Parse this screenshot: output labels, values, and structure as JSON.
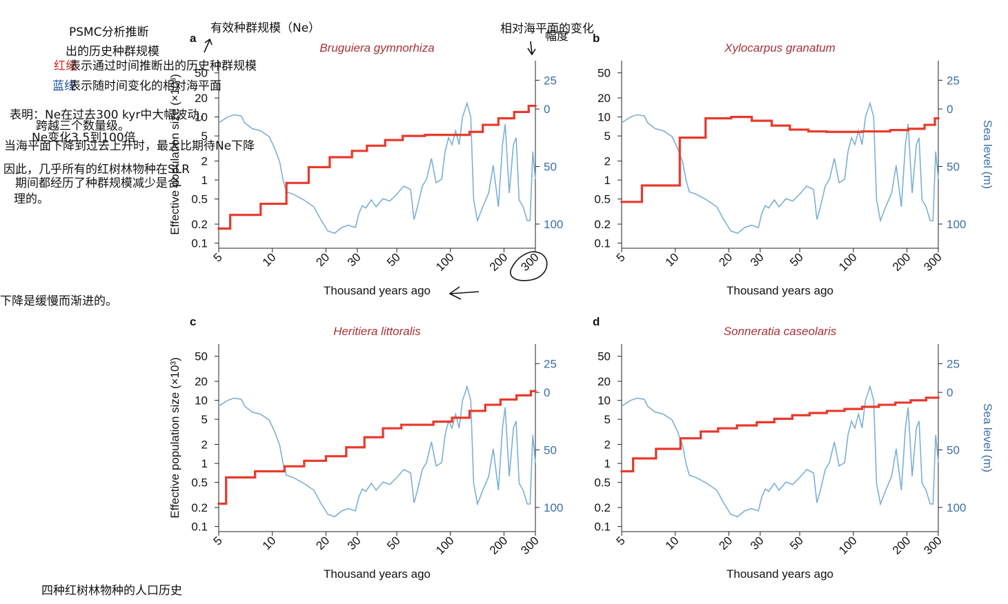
{
  "chart_data": [
    {
      "type": "line",
      "panel": "a",
      "title": "Bruguiera gymnorhiza",
      "xlabel": "Thousand years ago",
      "ylabel": "Effective population size (×10³)",
      "xscale": "log",
      "yscale": "log",
      "xlim": [
        5,
        300
      ],
      "xticks": [
        5,
        10,
        20,
        30,
        50,
        100,
        200,
        300
      ],
      "ylim": [
        0.083,
        78
      ],
      "yticks": [
        0.1,
        0.2,
        0.5,
        1,
        2,
        5,
        10,
        20,
        50
      ],
      "y2lim": [
        -121,
        42
      ],
      "y2ticks": [
        {
          "value": 25,
          "label": "25"
        },
        0,
        {
          "value": -50,
          "label": "50"
        },
        {
          "value": -100,
          "label": "100"
        }
      ],
      "series": [
        {
          "color": "#e8392b",
          "drawstyle": "steps-post",
          "x": [
            5,
            5.8,
            8.6,
            12,
            16,
            21,
            28,
            34,
            43,
            54,
            72,
            128,
            152,
            186,
            228,
            275
          ],
          "values": [
            0.17,
            0.28,
            0.42,
            0.9,
            1.6,
            2.3,
            2.9,
            3.5,
            4.3,
            5,
            5.2,
            5.8,
            7.5,
            9.5,
            12,
            15
          ]
        },
        {
          "color": "#7bafd4",
          "axis": "y2",
          "x": [
            5,
            5.6,
            6.1,
            6.7,
            7,
            7.7,
            8.6,
            9.6,
            10.3,
            11,
            11.5,
            12,
            13.1,
            15,
            17.1,
            18.7,
            20.5,
            22.4,
            24.5,
            26.8,
            29.3,
            30.6,
            32,
            33.5,
            36,
            38.3,
            41.8,
            45.7,
            50,
            54.7,
            59.8,
            62.5,
            65.3,
            69.5,
            73.4,
            78.2,
            83.2,
            89.3,
            93.3,
            97.6,
            102,
            107,
            112,
            117,
            124,
            130,
            135,
            142,
            152,
            164,
            174,
            186,
            196,
            203,
            214,
            226,
            234,
            243,
            256,
            270,
            280,
            290,
            300
          ],
          "values": [
            -12,
            -7,
            -5,
            -6,
            -12,
            -17,
            -19,
            -24,
            -34,
            -46,
            -62,
            -72,
            -74,
            -79,
            -85,
            -96,
            -106,
            -108,
            -103,
            -101,
            -103,
            -91,
            -84,
            -86,
            -79,
            -85,
            -78,
            -80,
            -74,
            -67,
            -70,
            -96,
            -85,
            -67,
            -61,
            -43,
            -64,
            -61,
            -37,
            -25,
            -31,
            -19,
            -31,
            -7,
            5,
            -7,
            -79,
            -97,
            -85,
            -73,
            -49,
            -85,
            -31,
            -13,
            -73,
            -31,
            -25,
            -79,
            -85,
            -97,
            -97,
            -37,
            -61
          ]
        }
      ]
    },
    {
      "type": "line",
      "panel": "b",
      "title": "Xylocarpus granatum",
      "xlabel": "Thousand years ago",
      "y2label": "Sea level (m)",
      "xscale": "log",
      "yscale": "log",
      "xlim": [
        5,
        300
      ],
      "xticks": [
        5,
        10,
        20,
        30,
        50,
        100,
        200,
        300
      ],
      "ylim": [
        0.083,
        78
      ],
      "yticks": [
        0.1,
        0.2,
        0.5,
        1,
        2,
        5,
        10,
        20,
        50
      ],
      "y2lim": [
        -121,
        42
      ],
      "y2ticks": [
        {
          "value": 25,
          "label": "25"
        },
        0,
        {
          "value": -50,
          "label": "50"
        },
        {
          "value": -100,
          "label": "100"
        }
      ],
      "series": [
        {
          "color": "#e8392b",
          "drawstyle": "steps-post",
          "x": [
            5,
            6.5,
            10.6,
            14.8,
            20.6,
            26.9,
            34.8,
            44,
            55.9,
            70.6,
            112,
            161,
            204,
            251,
            287
          ],
          "values": [
            0.45,
            0.82,
            4.7,
            9.5,
            10,
            8.7,
            7.3,
            6.3,
            5.9,
            5.8,
            5.9,
            6.2,
            6.5,
            7.5,
            9.5
          ]
        },
        {
          "color": "#7bafd4",
          "axis": "y2",
          "x": [
            5,
            5.6,
            6.1,
            6.7,
            7,
            7.7,
            8.6,
            9.6,
            10.3,
            11,
            11.5,
            12,
            13.1,
            15,
            17.1,
            18.7,
            20.5,
            22.4,
            24.5,
            26.8,
            29.3,
            30.6,
            32,
            33.5,
            36,
            38.3,
            41.8,
            45.7,
            50,
            54.7,
            59.8,
            62.5,
            65.3,
            69.5,
            73.4,
            78.2,
            83.2,
            89.3,
            93.3,
            97.6,
            102,
            107,
            112,
            117,
            124,
            130,
            135,
            142,
            152,
            164,
            174,
            186,
            196,
            203,
            214,
            226,
            234,
            243,
            256,
            270,
            280,
            290,
            300
          ],
          "values": [
            -12,
            -7,
            -5,
            -6,
            -12,
            -17,
            -19,
            -24,
            -34,
            -46,
            -62,
            -72,
            -74,
            -79,
            -85,
            -96,
            -106,
            -108,
            -103,
            -101,
            -103,
            -91,
            -84,
            -86,
            -79,
            -85,
            -78,
            -80,
            -74,
            -67,
            -70,
            -96,
            -85,
            -67,
            -61,
            -43,
            -64,
            -61,
            -37,
            -25,
            -31,
            -19,
            -31,
            -7,
            5,
            -7,
            -79,
            -97,
            -85,
            -73,
            -49,
            -85,
            -31,
            -13,
            -73,
            -31,
            -25,
            -79,
            -85,
            -97,
            -97,
            -37,
            -61
          ]
        }
      ]
    },
    {
      "type": "line",
      "panel": "c",
      "title": "Heritiera littoralis",
      "xlabel": "Thousand years ago",
      "ylabel": "Effective population size (×10³)",
      "xscale": "log",
      "yscale": "log",
      "xlim": [
        5,
        300
      ],
      "xticks": [
        5,
        10,
        20,
        30,
        50,
        100,
        200,
        300
      ],
      "ylim": [
        0.083,
        78
      ],
      "yticks": [
        0.1,
        0.2,
        0.5,
        1,
        2,
        5,
        10,
        20,
        50
      ],
      "y2lim": [
        -121,
        42
      ],
      "y2ticks": [
        {
          "value": 25,
          "label": "25"
        },
        0,
        {
          "value": -50,
          "label": "50"
        },
        {
          "value": -100,
          "label": "100"
        }
      ],
      "series": [
        {
          "color": "#e8392b",
          "drawstyle": "steps-post",
          "x": [
            5,
            5.5,
            8,
            11.7,
            15.1,
            20,
            26,
            32.9,
            41.8,
            53,
            80.2,
            102,
            128,
            157,
            191,
            235,
            283
          ],
          "values": [
            0.23,
            0.6,
            0.75,
            0.9,
            1.1,
            1.3,
            1.8,
            2.6,
            3.6,
            4.1,
            4.6,
            5.3,
            6.8,
            8.5,
            10.3,
            12,
            14
          ]
        },
        {
          "color": "#7bafd4",
          "axis": "y2",
          "x": [
            5,
            5.6,
            6.1,
            6.7,
            7,
            7.7,
            8.6,
            9.6,
            10.3,
            11,
            11.5,
            12,
            13.1,
            15,
            17.1,
            18.7,
            20.5,
            22.4,
            24.5,
            26.8,
            29.3,
            30.6,
            32,
            33.5,
            36,
            38.3,
            41.8,
            45.7,
            50,
            54.7,
            59.8,
            62.5,
            65.3,
            69.5,
            73.4,
            78.2,
            83.2,
            89.3,
            93.3,
            97.6,
            102,
            107,
            112,
            117,
            124,
            130,
            135,
            142,
            152,
            164,
            174,
            186,
            196,
            203,
            214,
            226,
            234,
            243,
            256,
            270,
            280,
            290,
            300
          ],
          "values": [
            -12,
            -7,
            -5,
            -6,
            -12,
            -17,
            -19,
            -24,
            -34,
            -46,
            -62,
            -72,
            -74,
            -79,
            -85,
            -96,
            -106,
            -108,
            -103,
            -101,
            -103,
            -91,
            -84,
            -86,
            -79,
            -85,
            -78,
            -80,
            -74,
            -67,
            -70,
            -96,
            -85,
            -67,
            -61,
            -43,
            -64,
            -61,
            -37,
            -25,
            -31,
            -19,
            -31,
            -7,
            5,
            -7,
            -79,
            -97,
            -85,
            -73,
            -49,
            -85,
            -31,
            -13,
            -73,
            -31,
            -25,
            -79,
            -85,
            -97,
            -97,
            -37,
            -61
          ]
        }
      ]
    },
    {
      "type": "line",
      "panel": "d",
      "title": "Sonneratia caseolaris",
      "xlabel": "Thousand years ago",
      "y2label": "Sea level (m)",
      "xscale": "log",
      "yscale": "log",
      "xlim": [
        5,
        300
      ],
      "xticks": [
        5,
        10,
        20,
        30,
        50,
        100,
        200,
        300
      ],
      "ylim": [
        0.083,
        78
      ],
      "yticks": [
        0.1,
        0.2,
        0.5,
        1,
        2,
        5,
        10,
        20,
        50
      ],
      "y2lim": [
        -121,
        42
      ],
      "y2ticks": [
        {
          "value": 25,
          "label": "25"
        },
        0,
        {
          "value": -50,
          "label": "50"
        },
        {
          "value": -100,
          "label": "100"
        }
      ],
      "series": [
        {
          "color": "#e8392b",
          "drawstyle": "steps-post",
          "x": [
            5,
            5.8,
            7.8,
            10.7,
            13.9,
            17.4,
            22.2,
            28.7,
            36,
            45.4,
            56.8,
            71,
            89.2,
            112,
            139,
            172,
            210,
            256
          ],
          "values": [
            0.75,
            1.2,
            1.7,
            2.5,
            3.2,
            3.6,
            4,
            4.5,
            5.1,
            5.8,
            6.3,
            6.8,
            7.3,
            7.9,
            8.5,
            9.2,
            10,
            11
          ]
        },
        {
          "color": "#7bafd4",
          "axis": "y2",
          "x": [
            5,
            5.6,
            6.1,
            6.7,
            7,
            7.7,
            8.6,
            9.6,
            10.3,
            11,
            11.5,
            12,
            13.1,
            15,
            17.1,
            18.7,
            20.5,
            22.4,
            24.5,
            26.8,
            29.3,
            30.6,
            32,
            33.5,
            36,
            38.3,
            41.8,
            45.7,
            50,
            54.7,
            59.8,
            62.5,
            65.3,
            69.5,
            73.4,
            78.2,
            83.2,
            89.3,
            93.3,
            97.6,
            102,
            107,
            112,
            117,
            124,
            130,
            135,
            142,
            152,
            164,
            174,
            186,
            196,
            203,
            214,
            226,
            234,
            243,
            256,
            270,
            280,
            290,
            300
          ],
          "values": [
            -12,
            -7,
            -5,
            -6,
            -12,
            -17,
            -19,
            -24,
            -34,
            -46,
            -62,
            -72,
            -74,
            -79,
            -85,
            -96,
            -106,
            -108,
            -103,
            -101,
            -103,
            -91,
            -84,
            -86,
            -79,
            -85,
            -78,
            -80,
            -74,
            -67,
            -70,
            -96,
            -85,
            -67,
            -61,
            -43,
            -64,
            -61,
            -37,
            -25,
            -31,
            -19,
            -31,
            -7,
            5,
            -7,
            -79,
            -97,
            -85,
            -73,
            -49,
            -85,
            -31,
            -13,
            -73,
            -31,
            -25,
            -79,
            -85,
            -97,
            -97,
            -37,
            -61
          ]
        }
      ]
    }
  ],
  "annotations": [
    "PSMC分析推断",
    "出的历史种群规模",
    "红线",
    "表示通过时间推断出的历史种群规模",
    "蓝线",
    "表示随时间变化的相对海平面",
    "表明：Ne在过去300 kyr中大幅波动，",
    "跨越三个数量级。",
    "Ne变化3.5到100倍",
    "当海平面下降到过去上升时，最大比期待Ne下降",
    "因此，几乎所有的红树林物种在SLR",
    "期间都经历了种群规模减少是合",
    "理的。",
    "下降是缓慢而渐进的。",
    "有效种群规模（Ne）",
    "相对海平面的变化",
    "幅度",
    "四种红树林物种的人口历史"
  ]
}
